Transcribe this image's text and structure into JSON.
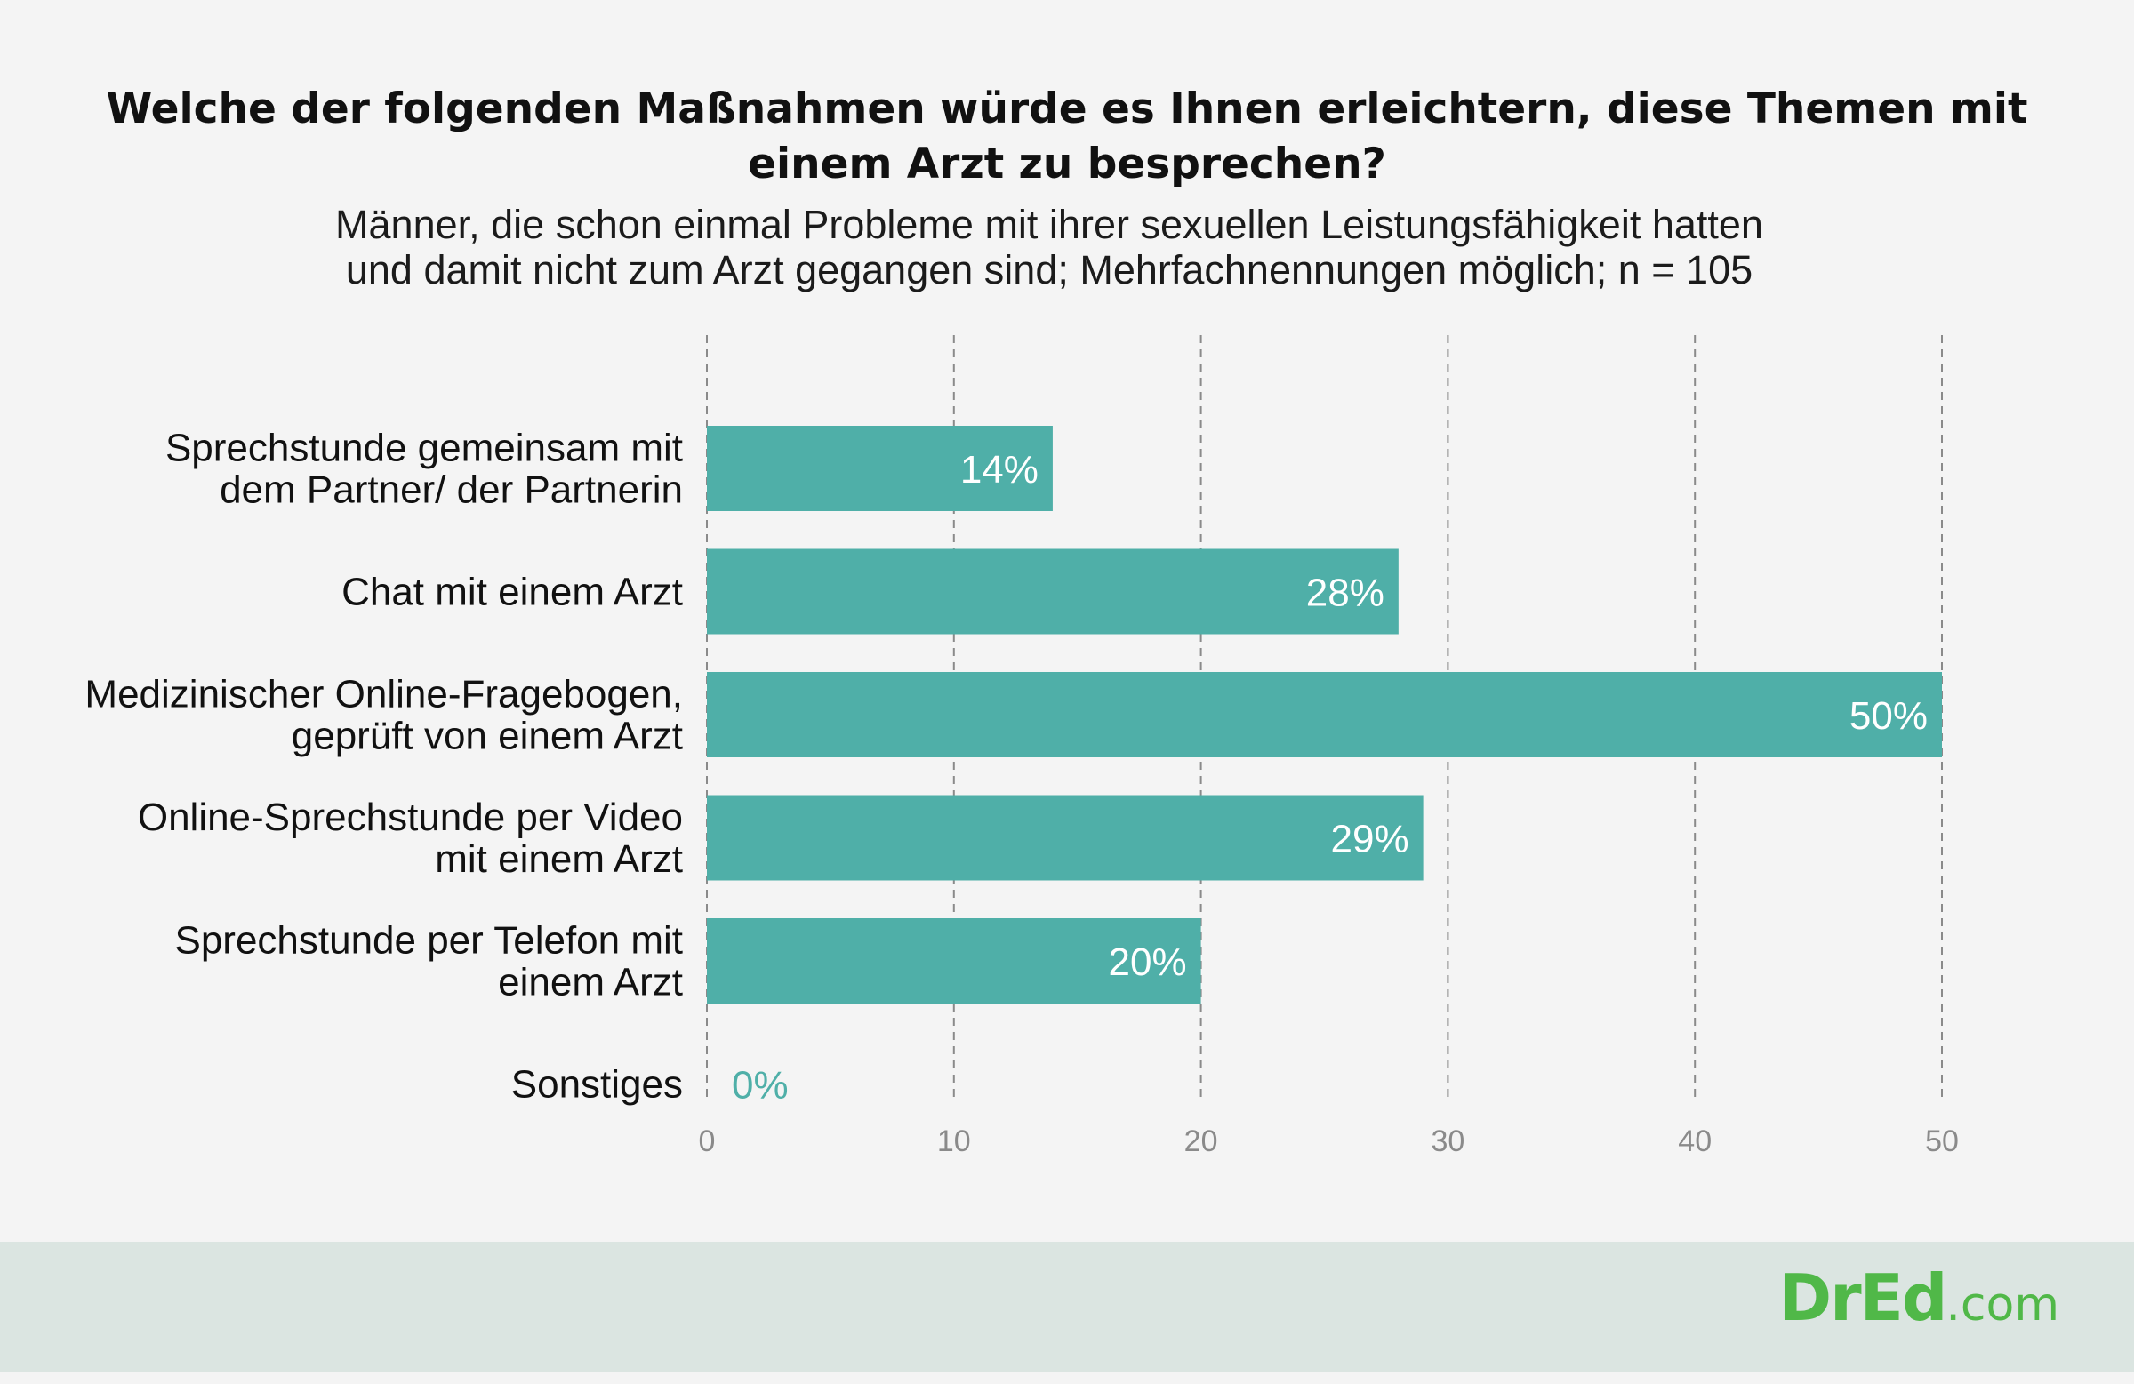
{
  "header": {
    "title_line1": "Welche der folgenden Maßnahmen würde es Ihnen erleichtern, diese Themen mit",
    "title_line2": "einem Arzt zu besprechen?",
    "subtitle_line1": "Männer, die schon einmal Probleme mit ihrer sexuellen Leistungsfähigkeit hatten",
    "subtitle_line2": "und damit nicht zum Arzt gegangen sind; Mehrfachnennungen möglich; n = 105"
  },
  "chart_data": {
    "type": "bar",
    "orientation": "horizontal",
    "categories": [
      [
        "Sprechstunde gemeinsam mit",
        "dem Partner/ der Partnerin"
      ],
      [
        "Chat mit einem Arzt"
      ],
      [
        "Medizinischer Online-Fragebogen,",
        "geprüft von einem Arzt"
      ],
      [
        "Online-Sprechstunde per Video",
        "mit einem Arzt"
      ],
      [
        "Sprechstunde per Telefon mit",
        "einem Arzt"
      ],
      [
        "Sonstiges"
      ]
    ],
    "values": [
      14,
      28,
      50,
      29,
      20,
      0
    ],
    "data_labels": [
      "14%",
      "28%",
      "50%",
      "29%",
      "20%",
      "0%"
    ],
    "xlim": [
      0,
      50
    ],
    "xticks": [
      0,
      10,
      20,
      30,
      40,
      50
    ],
    "grid": true,
    "bar_color": "#4fafa8",
    "label_color_outside": "#4fafa8",
    "label_color_inside": "#ffffff"
  },
  "footer": {
    "logo_main": "DrEd",
    "logo_suffix": ".com",
    "background": "#dbe5e1"
  }
}
